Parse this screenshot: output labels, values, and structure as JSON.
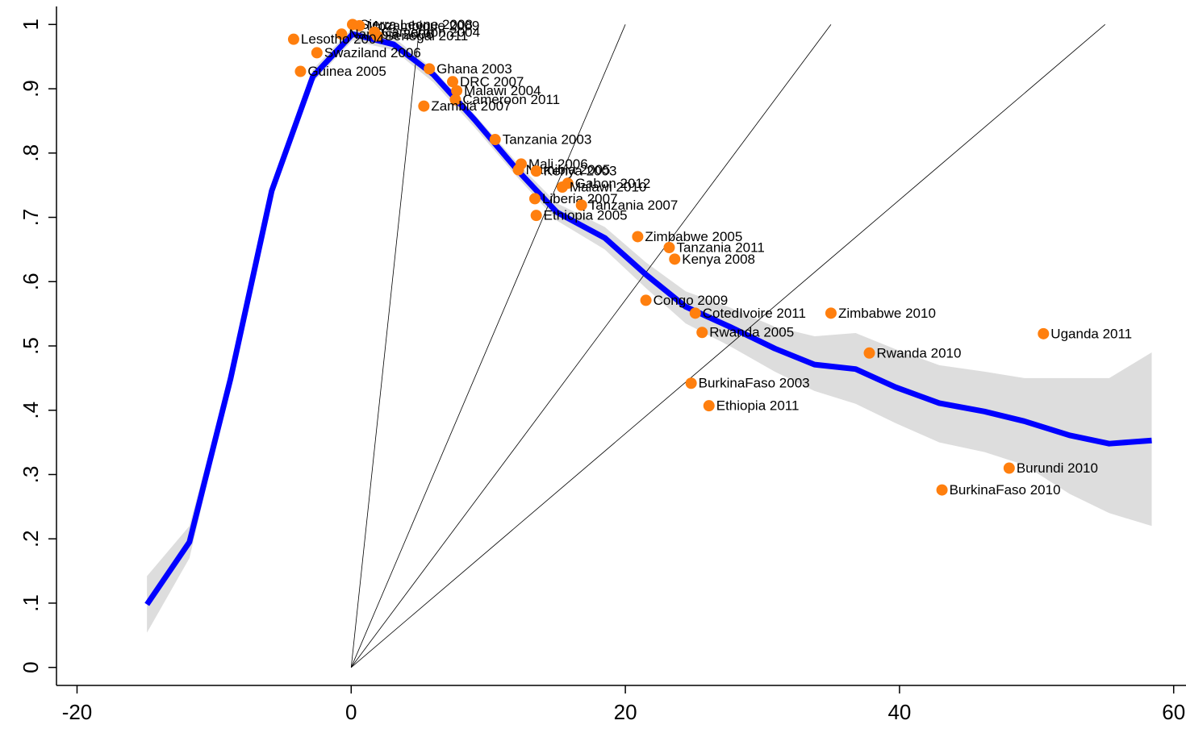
{
  "chart_data": {
    "type": "scatter",
    "xlim": [
      -21.5,
      60.9
    ],
    "ylim": [
      -0.028,
      1.028
    ],
    "xticks": [
      -20,
      0,
      20,
      40,
      60
    ],
    "yticks": [
      0,
      {
        "value": 0.1,
        "label": ".1"
      },
      {
        "value": 0.2,
        "label": ".2"
      },
      {
        "value": 0.3,
        "label": ".3"
      },
      {
        "value": 0.4,
        "label": ".4"
      },
      {
        "value": 0.5,
        "label": ".5"
      },
      {
        "value": 0.6,
        "label": ".6"
      },
      {
        "value": 0.7,
        "label": ".7"
      },
      {
        "value": 0.8,
        "label": ".8"
      },
      {
        "value": 0.9,
        "label": ".9"
      },
      1
    ],
    "reference_lines": [
      {
        "x": [
          0,
          5
        ],
        "values": [
          0,
          1
        ]
      },
      {
        "x": [
          0,
          20
        ],
        "values": [
          0,
          1
        ]
      },
      {
        "x": [
          0,
          35
        ],
        "values": [
          0,
          1
        ]
      },
      {
        "x": [
          0,
          55
        ],
        "values": [
          0,
          1
        ]
      }
    ],
    "fit": {
      "color": "#0000ff",
      "band_color": "#dddddd",
      "x": [
        -14.9,
        -11.8,
        -8.8,
        -5.8,
        -2.8,
        0.1,
        3.1,
        6.0,
        9.0,
        12.1,
        15.0,
        18.5,
        21.5,
        24.4,
        27.6,
        30.9,
        33.8,
        36.8,
        39.7,
        42.9,
        46.2,
        49.1,
        52.4,
        55.3,
        58.4
      ],
      "values": [
        0.098,
        0.195,
        0.449,
        0.741,
        0.919,
        0.985,
        0.969,
        0.922,
        0.852,
        0.774,
        0.708,
        0.668,
        0.611,
        0.561,
        0.53,
        0.496,
        0.471,
        0.464,
        0.436,
        0.411,
        0.398,
        0.383,
        0.361,
        0.348,
        0.353
      ],
      "upper": [
        0.142,
        0.22,
        0.46,
        0.75,
        0.93,
        0.995,
        0.98,
        0.93,
        0.86,
        0.785,
        0.722,
        0.685,
        0.63,
        0.585,
        0.56,
        0.53,
        0.515,
        0.52,
        0.495,
        0.47,
        0.46,
        0.45,
        0.45,
        0.45,
        0.49
      ],
      "lower": [
        0.054,
        0.17,
        0.44,
        0.73,
        0.91,
        0.975,
        0.96,
        0.91,
        0.84,
        0.763,
        0.695,
        0.65,
        0.59,
        0.535,
        0.5,
        0.46,
        0.43,
        0.41,
        0.38,
        0.35,
        0.335,
        0.315,
        0.27,
        0.24,
        0.22
      ]
    },
    "points": {
      "color": "#ff7f0e",
      "x": [
        0.1,
        0.6,
        -0.7,
        1.7,
        1.9,
        -4.2,
        -2.5,
        -3.7,
        5.7,
        7.4,
        7.7,
        7.6,
        5.3,
        10.5,
        12.4,
        12.2,
        13.5,
        15.8,
        15.4,
        13.4,
        16.8,
        13.5,
        20.9,
        23.2,
        23.6,
        21.5,
        25.1,
        35.0,
        25.6,
        50.5,
        37.8,
        24.8,
        26.1,
        48.0,
        43.1
      ],
      "values": [
        1.0,
        0.998,
        0.985,
        0.988,
        0.982,
        0.977,
        0.956,
        0.927,
        0.931,
        0.911,
        0.897,
        0.883,
        0.873,
        0.821,
        0.783,
        0.774,
        0.772,
        0.753,
        0.747,
        0.729,
        0.719,
        0.703,
        0.67,
        0.653,
        0.635,
        0.571,
        0.551,
        0.551,
        0.521,
        0.519,
        0.489,
        0.442,
        0.407,
        0.31,
        0.276
      ],
      "labels": [
        "Sierra Leone 2008",
        "Mozambique 2009",
        "Namibia 2006",
        "Cameroon 2004",
        "Senegal 2011",
        "Lesotho 2004",
        "Swaziland 2006",
        "Guinea 2005",
        "Ghana 2003",
        "DRC 2007",
        "Malawi 2004",
        "Cameroon 2011",
        "Zambia 2007",
        "Tanzania 2003",
        "Mali 2006",
        "Namibia 2005",
        "Kenya 2003",
        "Gabon 2012",
        "Malawi 2010",
        "Liberia 2007",
        "Tanzania 2007",
        "Ethiopia 2005",
        "Zimbabwe 2005",
        "Tanzania 2011",
        "Kenya 2008",
        "Congo 2009",
        "CotedIvoire 2011",
        "Zimbabwe 2010",
        "Rwanda 2005",
        "Uganda 2011",
        "Rwanda 2010",
        "BurkinaFaso 2003",
        "Ethiopia 2011",
        "Burundi 2010",
        "BurkinaFaso 2010"
      ]
    }
  }
}
